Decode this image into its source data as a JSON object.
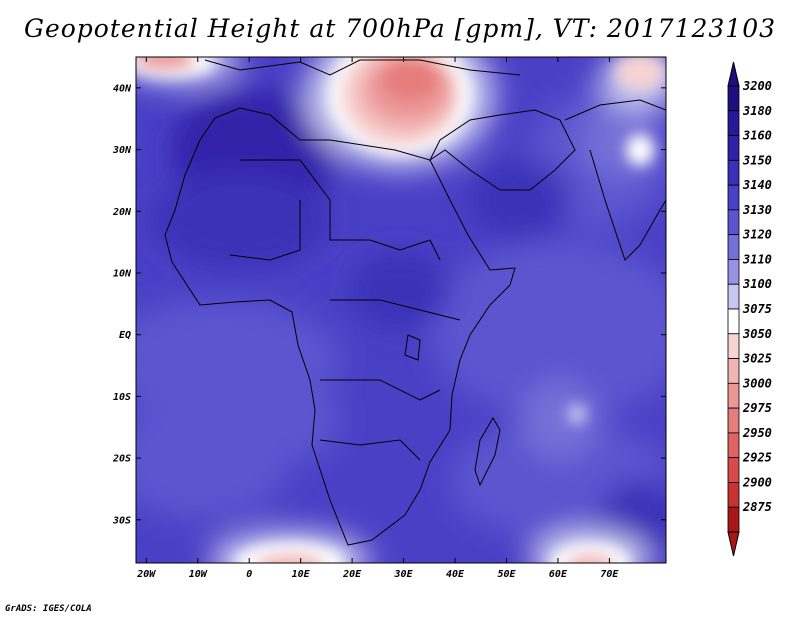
{
  "title": "Geopotential Height at 700hPa [gpm], VT: 2017123103",
  "credit": "GrADS: IGES/COLA",
  "map": {
    "lon_range": [
      -22,
      81
    ],
    "lat_range": [
      -37,
      45
    ],
    "lat_labels": [
      {
        "lat": 40,
        "label": "40N"
      },
      {
        "lat": 30,
        "label": "30N"
      },
      {
        "lat": 20,
        "label": "20N"
      },
      {
        "lat": 10,
        "label": "10N"
      },
      {
        "lat": 0,
        "label": "EQ"
      },
      {
        "lat": -10,
        "label": "10S"
      },
      {
        "lat": -20,
        "label": "20S"
      },
      {
        "lat": -30,
        "label": "30S"
      }
    ],
    "lon_labels": [
      {
        "lon": -20,
        "label": "20W"
      },
      {
        "lon": -10,
        "label": "10W"
      },
      {
        "lon": 0,
        "label": "0"
      },
      {
        "lon": 10,
        "label": "10E"
      },
      {
        "lon": 20,
        "label": "20E"
      },
      {
        "lon": 30,
        "label": "30E"
      },
      {
        "lon": 40,
        "label": "40E"
      },
      {
        "lon": 50,
        "label": "50E"
      },
      {
        "lon": 60,
        "label": "60E"
      },
      {
        "lon": 70,
        "label": "70E"
      }
    ]
  },
  "colorbar": {
    "levels": [
      {
        "label": "3200",
        "color": "#1e0e7e"
      },
      {
        "label": "3180",
        "color": "#26199a"
      },
      {
        "label": "3160",
        "color": "#3021a8"
      },
      {
        "label": "3150",
        "color": "#3a30b8"
      },
      {
        "label": "3140",
        "color": "#4a40c6"
      },
      {
        "label": "3130",
        "color": "#5c55cf"
      },
      {
        "label": "3120",
        "color": "#7470d8"
      },
      {
        "label": "3110",
        "color": "#9694e2"
      },
      {
        "label": "3100",
        "color": "#c6c6ef"
      },
      {
        "label": "3075",
        "color": "#ffffff"
      },
      {
        "label": "3050",
        "color": "#f7d3d3"
      },
      {
        "label": "3025",
        "color": "#f2b5b5"
      },
      {
        "label": "3000",
        "color": "#ec9696"
      },
      {
        "label": "2975",
        "color": "#e67d7d"
      },
      {
        "label": "2950",
        "color": "#e06363"
      },
      {
        "label": "2925",
        "color": "#d94a4a"
      },
      {
        "label": "2900",
        "color": "#c83232"
      },
      {
        "label": "2875",
        "color": "#a81818"
      }
    ],
    "top_arrow_color": "#1e0e7e",
    "bottom_arrow_color": "#a81818"
  }
}
